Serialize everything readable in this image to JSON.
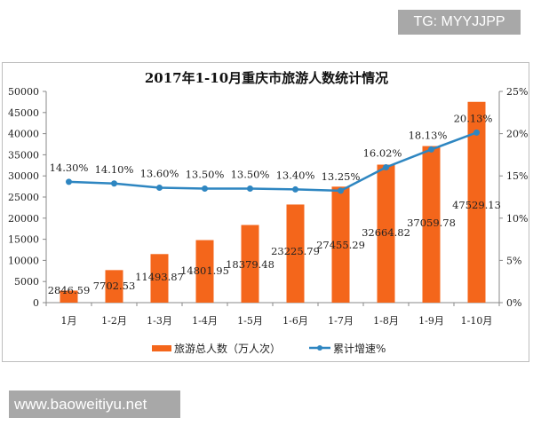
{
  "badges": {
    "top_right": "TG: MYYJJPP",
    "bottom_left": "www.baoweitiyu.net"
  },
  "colors": {
    "bar": "#f4661b",
    "line": "#2e86c1"
  },
  "chart_data": {
    "type": "bar+line",
    "title": "2017年1-10月重庆市旅游人数统计情况",
    "categories": [
      "1月",
      "1-2月",
      "1-3月",
      "1-4月",
      "1-5月",
      "1-6月",
      "1-7月",
      "1-8月",
      "1-9月",
      "1-10月"
    ],
    "series": [
      {
        "name": "旅游总人数（万人次）",
        "type": "bar",
        "axis": "left",
        "values": [
          2846.59,
          7702.53,
          11493.87,
          14801.95,
          18379.48,
          23225.79,
          27455.29,
          32664.82,
          37059.78,
          47529.13
        ],
        "labels": [
          "2846.59",
          "7702.53",
          "11493.87",
          "14801.95",
          "18379.48",
          "23225.79",
          "27455.29",
          "32664.82",
          "37059.78",
          "47529.13"
        ]
      },
      {
        "name": "累计增速%",
        "type": "line",
        "axis": "right",
        "values": [
          14.3,
          14.1,
          13.6,
          13.5,
          13.5,
          13.4,
          13.25,
          16.02,
          18.13,
          20.13
        ],
        "labels": [
          "14.30%",
          "14.10%",
          "13.60%",
          "13.50%",
          "13.50%",
          "13.40%",
          "13.25%",
          "16.02%",
          "18.13%",
          "20.13%"
        ]
      }
    ],
    "left_axis": {
      "ylim": [
        0,
        50000
      ],
      "ticks": [
        "0",
        "5000",
        "10000",
        "15000",
        "20000",
        "25000",
        "30000",
        "35000",
        "40000",
        "45000",
        "50000"
      ]
    },
    "right_axis": {
      "ylim": [
        0,
        25
      ],
      "ticks": [
        "0%",
        "5%",
        "10%",
        "15%",
        "20%",
        "25%"
      ]
    },
    "grid": false,
    "legend": "bottom"
  }
}
